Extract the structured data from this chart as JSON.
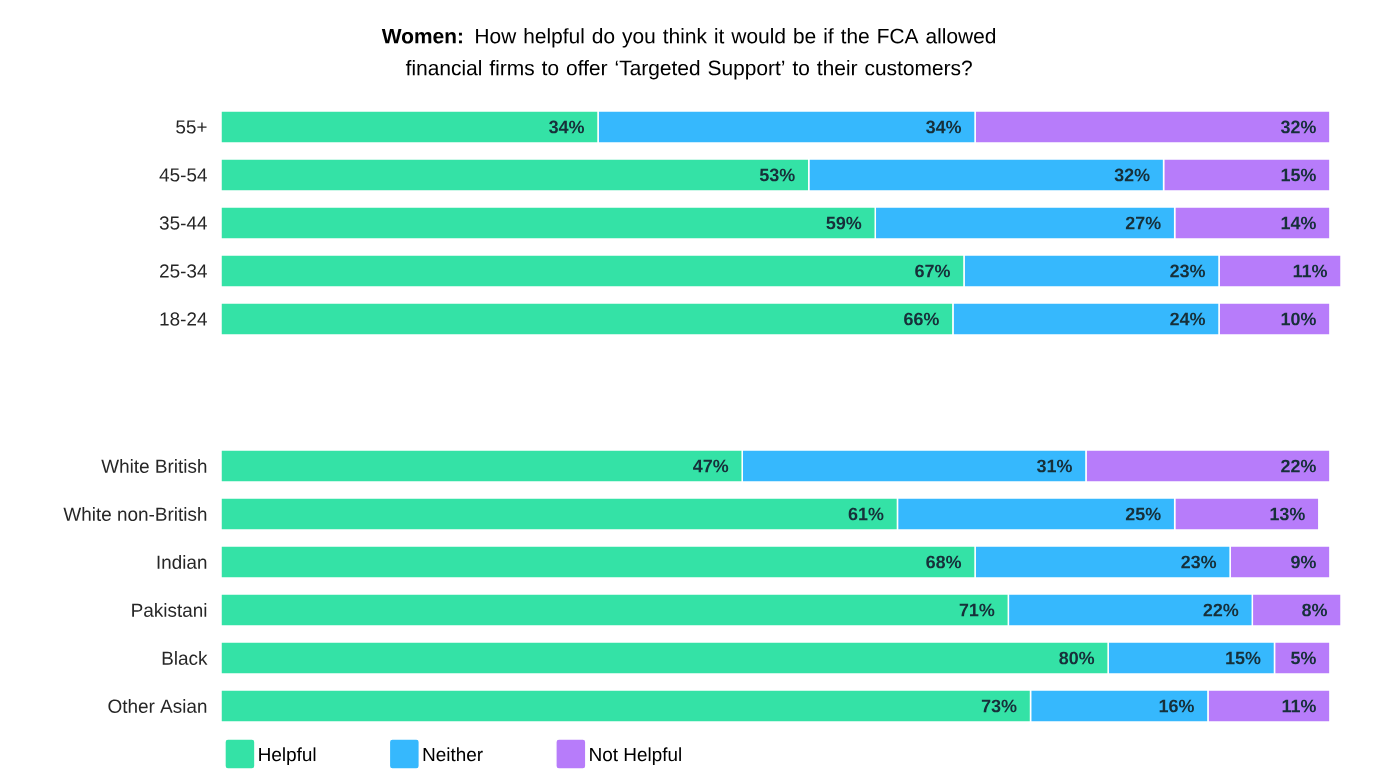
{
  "chart_data": [
    {
      "type": "bar",
      "orientation": "horizontal",
      "stacked": true,
      "title": "**Women:** How helpful do you think it would be if the FCA allowed financial firms to offer ‘Targeted Support’ to their customers?",
      "categories": [
        "55+",
        "45-54",
        "35-44",
        "25-34",
        "18-24"
      ],
      "tick_labels": "y",
      "series": [
        {
          "color": "#34e2a6",
          "values": [
            34,
            53,
            59,
            67,
            66
          ],
          "value_labels": [
            "34%",
            "53%",
            "59%",
            "67%",
            "66%"
          ]
        },
        {
          "color": "#36b8fd",
          "values": [
            34,
            32,
            27,
            23,
            24
          ],
          "value_labels": [
            "34%",
            "32%",
            "27%",
            "23%",
            "24%"
          ]
        },
        {
          "color": "#b77cfa",
          "values": [
            32,
            15,
            14,
            11,
            10
          ],
          "value_labels": [
            "32%",
            "15%",
            "14%",
            "11%",
            "10%"
          ]
        }
      ]
    },
    {
      "type": "bar",
      "orientation": "horizontal",
      "stacked": true,
      "categories": [
        "White British",
        "White non-British",
        "Indian",
        "Pakistani",
        "Black",
        "Other Asian"
      ],
      "tick_labels": "y",
      "legend": "bottom",
      "series": [
        {
          "name": "Helpful",
          "color": "#34e2a6",
          "values": [
            47,
            61,
            68,
            71,
            80,
            73
          ],
          "value_labels": [
            "47%",
            "61%",
            "68%",
            "71%",
            "80%",
            "73%"
          ]
        },
        {
          "name": "Neither",
          "color": "#36b8fd",
          "values": [
            31,
            25,
            23,
            22,
            15,
            16
          ],
          "value_labels": [
            "31%",
            "25%",
            "23%",
            "22%",
            "15%",
            "16%"
          ]
        },
        {
          "name": "Not Helpful",
          "color": "#b77cfa",
          "values": [
            22,
            13,
            9,
            8,
            5,
            11
          ],
          "value_labels": [
            "22%",
            "13%",
            "9%",
            "8%",
            "5%",
            "11%"
          ]
        }
      ]
    }
  ]
}
